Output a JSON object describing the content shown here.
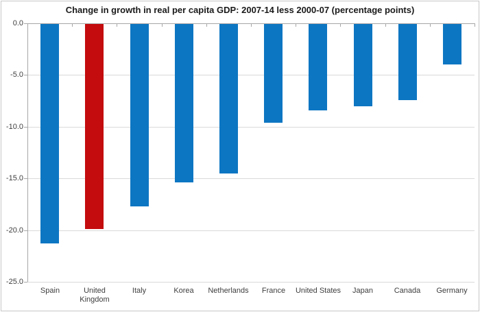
{
  "chart_data": {
    "type": "bar",
    "title": "Change in growth in real per capita GDP: 2007-14 less 2000-07 (percentage points)",
    "categories": [
      "Spain",
      "United Kingdom",
      "Italy",
      "Korea",
      "Netherlands",
      "France",
      "United States",
      "Japan",
      "Canada",
      "Germany"
    ],
    "values": [
      -21.3,
      -19.9,
      -17.7,
      -15.4,
      -14.5,
      -9.6,
      -8.4,
      -8.0,
      -7.4,
      -4.0
    ],
    "bar_colors": [
      "#0d76c2",
      "#c40b0d",
      "#0d76c2",
      "#0d76c2",
      "#0d76c2",
      "#0d76c2",
      "#0d76c2",
      "#0d76c2",
      "#0d76c2",
      "#0d76c2"
    ],
    "default_bar_color": "#0d76c2",
    "highlight_category": "United Kingdom",
    "highlight_color": "#c40b0d",
    "xlabel": "",
    "ylabel": "",
    "ylim": [
      -25,
      0
    ],
    "yticks": [
      0,
      -5,
      -10,
      -15,
      -20,
      -25
    ],
    "ytick_labels": [
      "0.0",
      "-5.0",
      "-10.0",
      "-15.0",
      "-20.0",
      "-25.0"
    ],
    "grid": "horizontal",
    "legend": "none",
    "colors": {
      "axis_line": "#a6a6a6",
      "gridline": "#d9d9d9",
      "chart_border": "#c6c6c6",
      "title_text": "#1a1a1a",
      "label_text": "#3d3d3d",
      "background": "#ffffff"
    }
  }
}
